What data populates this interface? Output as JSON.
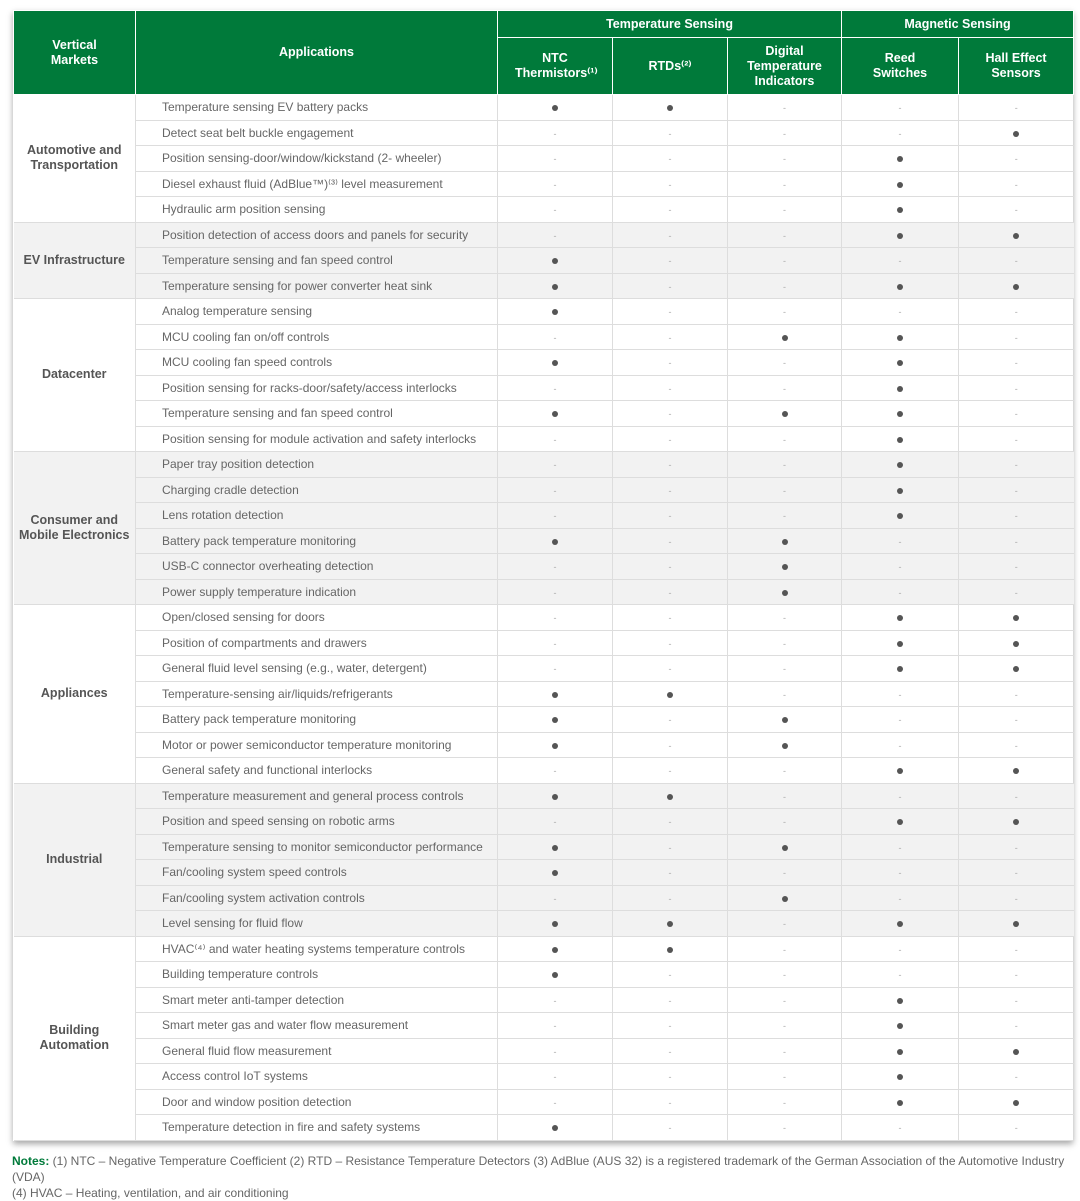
{
  "header": {
    "vertical_markets": "Vertical Markets",
    "applications": "Applications",
    "temperature_sensing": "Temperature Sensing",
    "magnetic_sensing": "Magnetic Sensing",
    "columns": [
      "NTC Thermistors⁽¹⁾",
      "RTDs⁽²⁾",
      "Digital Temperature Indicators",
      "Reed Switches",
      "Hall Effect Sensors"
    ]
  },
  "colors": {
    "header_bg": "#007a3a",
    "alt_row_bg": "#f2f2f2",
    "dot": "#555555"
  },
  "markers": {
    "yes": "●",
    "no": "-"
  },
  "groups": [
    {
      "market": "Automotive and Transportation",
      "shaded": false,
      "rows": [
        {
          "app": "Temperature sensing EV battery packs",
          "v": [
            1,
            1,
            0,
            0,
            0
          ]
        },
        {
          "app": "Detect seat belt buckle engagement",
          "v": [
            0,
            0,
            0,
            0,
            1
          ]
        },
        {
          "app": "Position sensing-door/window/kickstand (2- wheeler)",
          "v": [
            0,
            0,
            0,
            1,
            0
          ]
        },
        {
          "app": "Diesel exhaust fluid (AdBlue™)⁽³⁾ level measurement",
          "v": [
            0,
            0,
            0,
            1,
            0
          ]
        },
        {
          "app": "Hydraulic arm position sensing",
          "v": [
            0,
            0,
            0,
            1,
            0
          ]
        }
      ]
    },
    {
      "market": "EV Infrastructure",
      "shaded": true,
      "rows": [
        {
          "app": "Position detection of access doors and panels for security",
          "v": [
            0,
            0,
            0,
            1,
            1
          ]
        },
        {
          "app": "Temperature sensing and fan speed control",
          "v": [
            1,
            0,
            0,
            0,
            0
          ]
        },
        {
          "app": "Temperature sensing for power converter heat sink",
          "v": [
            1,
            0,
            0,
            1,
            1
          ]
        }
      ]
    },
    {
      "market": "Datacenter",
      "shaded": false,
      "rows": [
        {
          "app": "Analog temperature sensing",
          "v": [
            1,
            0,
            0,
            0,
            0
          ]
        },
        {
          "app": "MCU cooling fan on/off controls",
          "v": [
            0,
            0,
            1,
            1,
            0
          ]
        },
        {
          "app": "MCU cooling fan speed controls",
          "v": [
            1,
            0,
            0,
            1,
            0
          ]
        },
        {
          "app": "Position sensing for racks-door/safety/access interlocks",
          "v": [
            0,
            0,
            0,
            1,
            0
          ]
        },
        {
          "app": "Temperature sensing and fan speed control",
          "v": [
            1,
            0,
            1,
            1,
            0
          ]
        },
        {
          "app": "Position sensing for module activation and safety interlocks",
          "v": [
            0,
            0,
            0,
            1,
            0
          ]
        }
      ]
    },
    {
      "market": "Consumer and Mobile Electronics",
      "shaded": true,
      "rows": [
        {
          "app": "Paper tray position detection",
          "v": [
            0,
            0,
            0,
            1,
            0
          ]
        },
        {
          "app": "Charging cradle detection",
          "v": [
            0,
            0,
            0,
            1,
            0
          ]
        },
        {
          "app": "Lens rotation detection",
          "v": [
            0,
            0,
            0,
            1,
            0
          ]
        },
        {
          "app": "Battery pack temperature monitoring",
          "v": [
            1,
            0,
            1,
            0,
            0
          ]
        },
        {
          "app": "USB-C connector overheating detection",
          "v": [
            0,
            0,
            1,
            0,
            0
          ]
        },
        {
          "app": "Power supply temperature indication",
          "v": [
            0,
            0,
            1,
            0,
            0
          ]
        }
      ]
    },
    {
      "market": "Appliances",
      "shaded": false,
      "rows": [
        {
          "app": "Open/closed sensing for doors",
          "v": [
            0,
            0,
            0,
            1,
            1
          ]
        },
        {
          "app": "Position of compartments and drawers",
          "v": [
            0,
            0,
            0,
            1,
            1
          ]
        },
        {
          "app": "General fluid level sensing (e.g., water, detergent)",
          "v": [
            0,
            0,
            0,
            1,
            1
          ]
        },
        {
          "app": "Temperature-sensing air/liquids/refrigerants",
          "v": [
            1,
            1,
            0,
            0,
            0
          ]
        },
        {
          "app": "Battery pack temperature monitoring",
          "v": [
            1,
            0,
            1,
            0,
            0
          ]
        },
        {
          "app": "Motor or power semiconductor temperature monitoring",
          "v": [
            1,
            0,
            1,
            0,
            0
          ]
        },
        {
          "app": "General safety and functional interlocks",
          "v": [
            0,
            0,
            0,
            1,
            1
          ]
        }
      ]
    },
    {
      "market": "Industrial",
      "shaded": true,
      "rows": [
        {
          "app": "Temperature measurement and general process controls",
          "v": [
            1,
            1,
            0,
            0,
            0
          ]
        },
        {
          "app": "Position and speed sensing on robotic arms",
          "v": [
            0,
            0,
            0,
            1,
            1
          ]
        },
        {
          "app": "Temperature sensing to monitor semiconductor performance",
          "v": [
            1,
            0,
            1,
            0,
            0
          ]
        },
        {
          "app": "Fan/cooling system speed controls",
          "v": [
            1,
            0,
            0,
            0,
            0
          ]
        },
        {
          "app": "Fan/cooling system activation controls",
          "v": [
            0,
            0,
            1,
            0,
            0
          ]
        },
        {
          "app": "Level sensing for fluid flow",
          "v": [
            1,
            1,
            0,
            1,
            1
          ]
        }
      ]
    },
    {
      "market": "Building Automation",
      "shaded": false,
      "rows": [
        {
          "app": "HVAC⁽⁴⁾ and water heating systems temperature controls",
          "v": [
            1,
            1,
            0,
            0,
            0
          ]
        },
        {
          "app": "Building temperature controls",
          "v": [
            1,
            0,
            0,
            0,
            0
          ]
        },
        {
          "app": "Smart meter anti-tamper detection",
          "v": [
            0,
            0,
            0,
            1,
            0
          ]
        },
        {
          "app": "Smart meter gas and water flow measurement",
          "v": [
            0,
            0,
            0,
            1,
            0
          ]
        },
        {
          "app": "General fluid flow measurement",
          "v": [
            0,
            0,
            0,
            1,
            1
          ]
        },
        {
          "app": "Access control IoT systems",
          "v": [
            0,
            0,
            0,
            1,
            0
          ]
        },
        {
          "app": "Door and window position detection",
          "v": [
            0,
            0,
            0,
            1,
            1
          ]
        },
        {
          "app": "Temperature detection in fire and safety systems",
          "v": [
            1,
            0,
            0,
            0,
            0
          ]
        }
      ]
    }
  ],
  "notes": {
    "label": "Notes:",
    "line1": " (1) NTC – Negative Temperature Coefficient   (2) RTD – Resistance Temperature Detectors   (3) AdBlue (AUS 32) is a registered trademark of the German Association of the Automotive Industry (VDA)",
    "line2": "(4) HVAC – Heating, ventilation, and air conditioning"
  }
}
